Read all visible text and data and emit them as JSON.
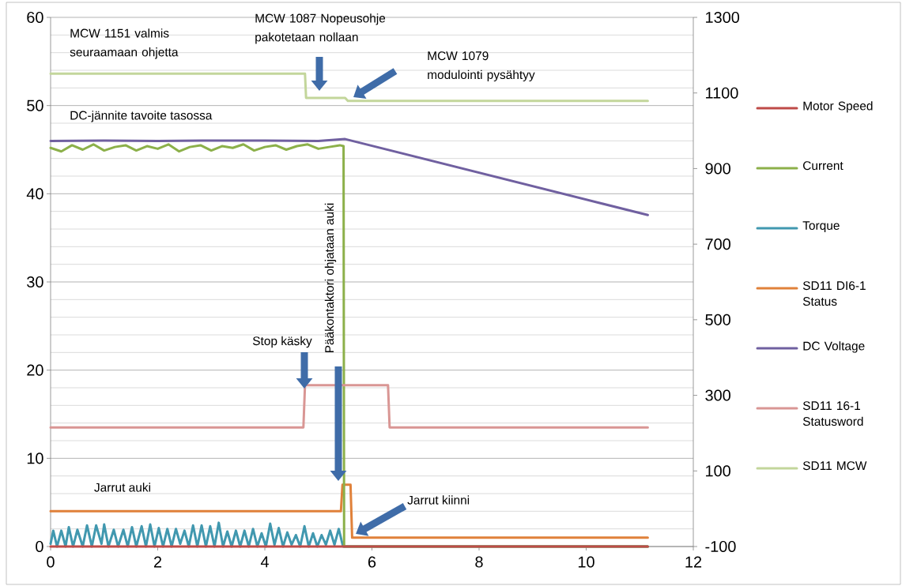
{
  "chart_data": {
    "type": "line",
    "xlim": [
      0,
      12
    ],
    "xticks": [
      0,
      2,
      4,
      6,
      8,
      10,
      12
    ],
    "ylim": [
      0,
      60
    ],
    "yticks": [
      0,
      10,
      20,
      30,
      40,
      50,
      60
    ],
    "y2lim": [
      -100,
      1300
    ],
    "y2ticks": [
      -100,
      100,
      300,
      500,
      700,
      900,
      1100,
      1300
    ],
    "grid": "y",
    "legend": "right",
    "series": [
      {
        "name": "Motor Speed",
        "color": "#be4b48",
        "x": [
          0,
          11.15
        ],
        "values": [
          0,
          0
        ]
      },
      {
        "name": "Current",
        "color": "#8cb04a",
        "x": [
          0,
          0.2,
          0.4,
          0.6,
          0.8,
          1.0,
          1.2,
          1.4,
          1.6,
          1.8,
          2.0,
          2.2,
          2.4,
          2.6,
          2.8,
          3.0,
          3.2,
          3.4,
          3.6,
          3.8,
          4.0,
          4.2,
          4.4,
          4.6,
          4.8,
          5.0,
          5.2,
          5.4,
          5.47,
          5.48,
          11.15
        ],
        "values": [
          45.2,
          44.8,
          45.5,
          45.0,
          45.6,
          44.9,
          45.3,
          45.5,
          44.9,
          45.4,
          45.1,
          45.6,
          44.8,
          45.3,
          45.5,
          44.9,
          45.4,
          45.2,
          45.6,
          44.9,
          45.3,
          45.5,
          45.0,
          45.4,
          45.6,
          45.1,
          45.3,
          45.5,
          45.4,
          0,
          0
        ]
      },
      {
        "name": "Torque",
        "color": "#4198af",
        "x": [
          0,
          0.05,
          0.12,
          0.2,
          0.28,
          0.34,
          0.42,
          0.5,
          0.6,
          0.68,
          0.77,
          0.85,
          0.95,
          1.0,
          1.08,
          1.18,
          1.26,
          1.36,
          1.44,
          1.52,
          1.6,
          1.7,
          1.78,
          1.86,
          1.94,
          2.02,
          2.1,
          2.18,
          2.26,
          2.34,
          2.42,
          2.5,
          2.58,
          2.66,
          2.74,
          2.82,
          2.9,
          2.98,
          3.06,
          3.14,
          3.22,
          3.3,
          3.38,
          3.46,
          3.54,
          3.62,
          3.7,
          3.78,
          3.86,
          3.94,
          4.02,
          4.1,
          4.18,
          4.26,
          4.34,
          4.42,
          4.5,
          4.58,
          4.66,
          4.74,
          4.82,
          4.9,
          4.98,
          5.06,
          5.14,
          5.22,
          5.3,
          5.38,
          5.46,
          11.15
        ],
        "values": [
          0.3,
          1.8,
          0,
          1.8,
          0,
          2.2,
          0,
          1.9,
          0,
          2.4,
          0,
          2.4,
          0.3,
          2.5,
          0,
          1.9,
          0,
          1.9,
          0,
          2.2,
          0,
          2.3,
          0,
          2.5,
          0,
          2.1,
          0,
          2.0,
          0,
          2.0,
          0.3,
          1.8,
          0,
          2.4,
          0,
          2.4,
          0,
          2.3,
          0,
          2.7,
          0,
          1.7,
          0,
          1.8,
          0,
          1.8,
          0,
          2.0,
          0,
          1.5,
          0,
          2.6,
          0.2,
          2.1,
          0,
          1.6,
          0.2,
          1.3,
          0,
          2.3,
          0,
          1.5,
          0,
          1.3,
          0.2,
          1.8,
          0.2,
          2.0,
          0,
          0
        ]
      },
      {
        "name": "SD11 DI6-1 Status",
        "color": "#e0813a",
        "x": [
          0,
          5.42,
          5.45,
          5.6,
          5.63,
          11.15
        ],
        "values": [
          4,
          4,
          7,
          7,
          1,
          1
        ]
      },
      {
        "name": "DC Voltage",
        "color": "#7060a0",
        "axis": "y2",
        "x": [
          0,
          1,
          2,
          3,
          4,
          5,
          5.5,
          11.15
        ],
        "values": [
          973,
          974,
          973,
          974,
          974,
          973,
          978,
          777
        ]
      },
      {
        "name": "SD11 16-1 Statusword",
        "color": "#d99694",
        "axis": "y2",
        "x": [
          0,
          4.72,
          4.75,
          6.3,
          6.33,
          11.15
        ],
        "values": [
          215,
          215,
          327,
          327,
          215,
          215
        ]
      },
      {
        "name": "SD11 MCW",
        "color": "#c3d69b",
        "axis": "y2",
        "x": [
          0,
          4.75,
          4.77,
          5.5,
          5.55,
          11.15
        ],
        "values": [
          1151,
          1151,
          1087,
          1087,
          1079,
          1079
        ]
      }
    ],
    "annotations": [
      "MCW 1151 valmis seuraamaan ohjetta",
      "MCW 1087 Nopeusohje pakotetaan nollaan",
      "MCW 1079 modulointi pysähtyy",
      "DC-jännite tavoite tasossa",
      "Pääkontaktori ohjataan auki",
      "Stop käsky",
      "Jarrut auki",
      "Jarrut kiinni"
    ]
  }
}
